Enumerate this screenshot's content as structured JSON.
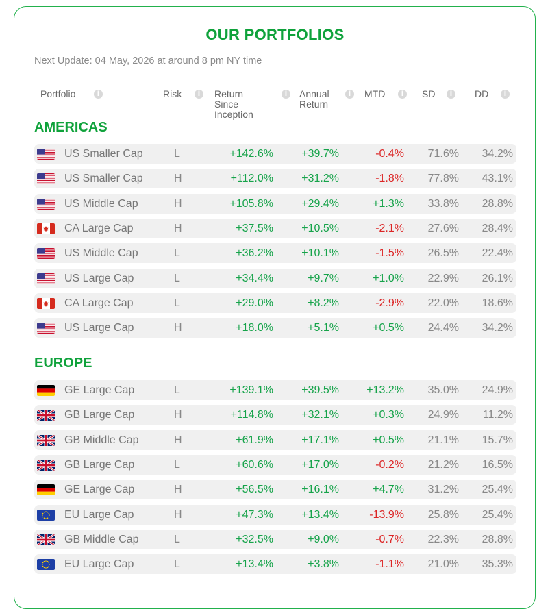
{
  "title": "OUR PORTFOLIOS",
  "next_update": "Next Update: 04 May, 2026 at around 8 pm NY time",
  "columns": {
    "portfolio": "Portfolio",
    "risk": "Risk",
    "return_since_inception": [
      "Return",
      "Since",
      "Inception"
    ],
    "annual_return": [
      "Annual",
      "Return"
    ],
    "mtd": "MTD",
    "sd": "SD",
    "dd": "DD",
    "info_glyph": "i"
  },
  "sections": [
    {
      "name": "AMERICAS",
      "rows": [
        {
          "flag": "us",
          "name": "US Smaller Cap",
          "risk": "L",
          "ret": "+142.6%",
          "ann": "+39.7%",
          "mtd": "-0.4%",
          "sd": "71.6%",
          "dd": "34.2%"
        },
        {
          "flag": "us",
          "name": "US Smaller Cap",
          "risk": "H",
          "ret": "+112.0%",
          "ann": "+31.2%",
          "mtd": "-1.8%",
          "sd": "77.8%",
          "dd": "43.1%"
        },
        {
          "flag": "us",
          "name": "US Middle Cap",
          "risk": "H",
          "ret": "+105.8%",
          "ann": "+29.4%",
          "mtd": "+1.3%",
          "sd": "33.8%",
          "dd": "28.8%"
        },
        {
          "flag": "ca",
          "name": "CA Large Cap",
          "risk": "H",
          "ret": "+37.5%",
          "ann": "+10.5%",
          "mtd": "-2.1%",
          "sd": "27.6%",
          "dd": "28.4%"
        },
        {
          "flag": "us",
          "name": "US Middle Cap",
          "risk": "L",
          "ret": "+36.2%",
          "ann": "+10.1%",
          "mtd": "-1.5%",
          "sd": "26.5%",
          "dd": "22.4%"
        },
        {
          "flag": "us",
          "name": "US Large Cap",
          "risk": "L",
          "ret": "+34.4%",
          "ann": "+9.7%",
          "mtd": "+1.0%",
          "sd": "22.9%",
          "dd": "26.1%"
        },
        {
          "flag": "ca",
          "name": "CA Large Cap",
          "risk": "L",
          "ret": "+29.0%",
          "ann": "+8.2%",
          "mtd": "-2.9%",
          "sd": "22.0%",
          "dd": "18.6%"
        },
        {
          "flag": "us",
          "name": "US Large Cap",
          "risk": "H",
          "ret": "+18.0%",
          "ann": "+5.1%",
          "mtd": "+0.5%",
          "sd": "24.4%",
          "dd": "34.2%"
        }
      ]
    },
    {
      "name": "EUROPE",
      "rows": [
        {
          "flag": "ge",
          "name": "GE Large Cap",
          "risk": "L",
          "ret": "+139.1%",
          "ann": "+39.5%",
          "mtd": "+13.2%",
          "sd": "35.0%",
          "dd": "24.9%"
        },
        {
          "flag": "gb",
          "name": "GB Large Cap",
          "risk": "H",
          "ret": "+114.8%",
          "ann": "+32.1%",
          "mtd": "+0.3%",
          "sd": "24.9%",
          "dd": "11.2%"
        },
        {
          "flag": "gb",
          "name": "GB Middle Cap",
          "risk": "H",
          "ret": "+61.9%",
          "ann": "+17.1%",
          "mtd": "+0.5%",
          "sd": "21.1%",
          "dd": "15.7%"
        },
        {
          "flag": "gb",
          "name": "GB Large Cap",
          "risk": "L",
          "ret": "+60.6%",
          "ann": "+17.0%",
          "mtd": "-0.2%",
          "sd": "21.2%",
          "dd": "16.5%"
        },
        {
          "flag": "ge",
          "name": "GE Large Cap",
          "risk": "H",
          "ret": "+56.5%",
          "ann": "+16.1%",
          "mtd": "+4.7%",
          "sd": "31.2%",
          "dd": "25.4%"
        },
        {
          "flag": "eu",
          "name": "EU Large Cap",
          "risk": "H",
          "ret": "+47.3%",
          "ann": "+13.4%",
          "mtd": "-13.9%",
          "sd": "25.8%",
          "dd": "25.4%"
        },
        {
          "flag": "gb",
          "name": "GB Middle Cap",
          "risk": "L",
          "ret": "+32.5%",
          "ann": "+9.0%",
          "mtd": "-0.7%",
          "sd": "22.3%",
          "dd": "28.8%"
        },
        {
          "flag": "eu",
          "name": "EU Large Cap",
          "risk": "L",
          "ret": "+13.4%",
          "ann": "+3.8%",
          "mtd": "-1.1%",
          "sd": "21.0%",
          "dd": "35.3%"
        }
      ]
    }
  ],
  "colors": {
    "accent": "#0fa23b",
    "positive": "#16a34a",
    "negative": "#dc2626",
    "row_bg": "#f0f0f0"
  }
}
